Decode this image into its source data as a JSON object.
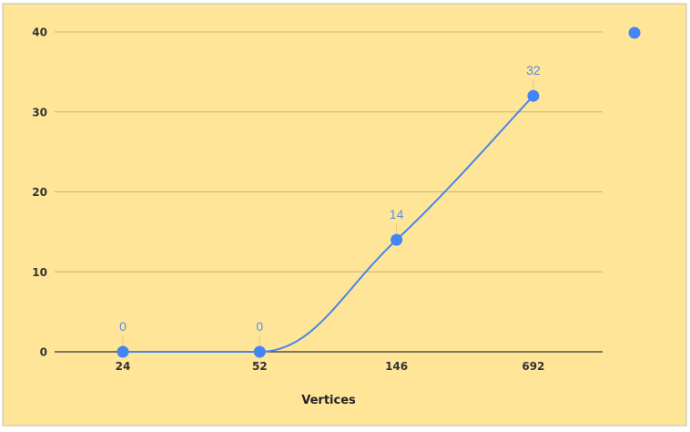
{
  "chart_data": {
    "type": "line",
    "categories": [
      "24",
      "52",
      "146",
      "692"
    ],
    "series": [
      {
        "values": [
          0,
          0,
          14,
          32
        ]
      }
    ],
    "xlabel": "Vertices",
    "ylabel": "",
    "ylim": [
      0,
      40
    ],
    "yticks": [
      0,
      10,
      20,
      30,
      40
    ],
    "grid": true,
    "smooth": true,
    "data_labels": true,
    "legend": "right",
    "colors": {
      "background": "#FFE598",
      "gridline": "#C9B37A",
      "baseline": "#333333",
      "line": "#4A86E8",
      "point": "#4285F4",
      "data_label": "#5B8BE0",
      "sheet_border": "#BDBDBD"
    }
  }
}
